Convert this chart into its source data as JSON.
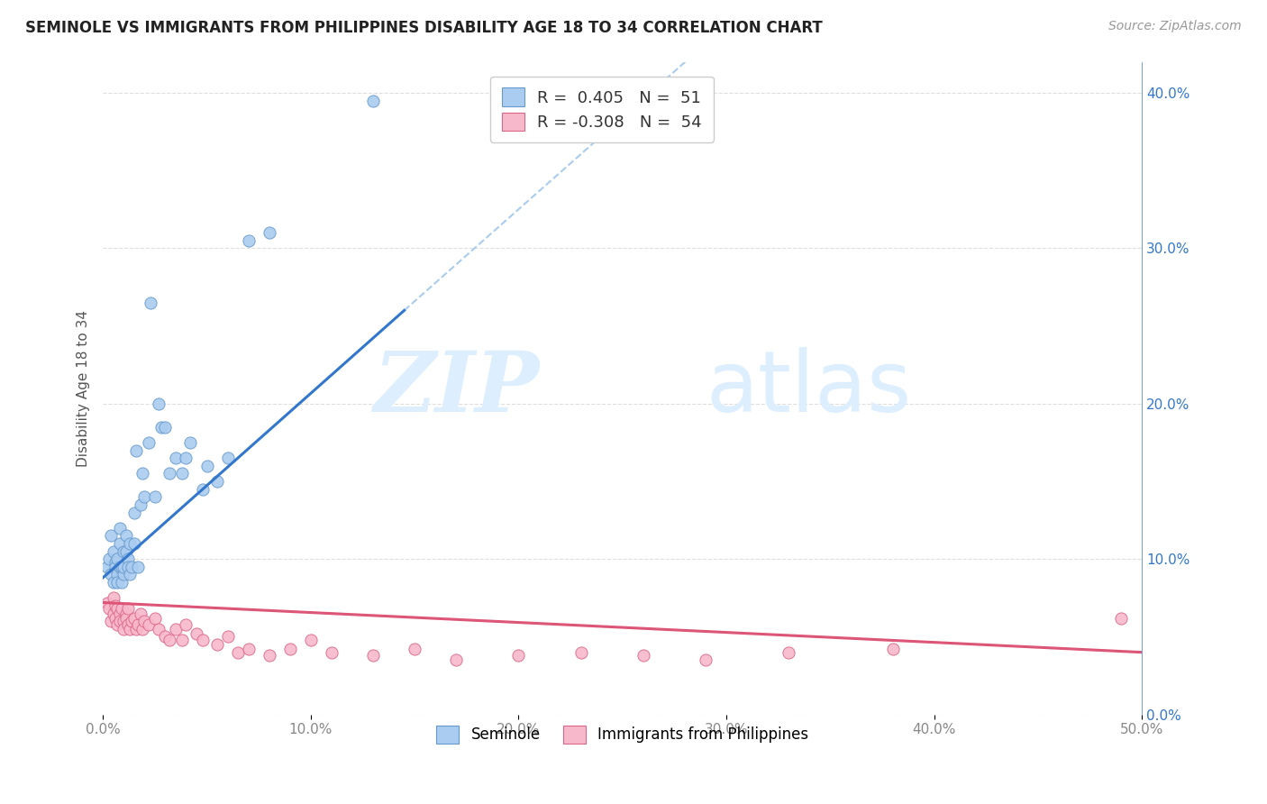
{
  "title": "SEMINOLE VS IMMIGRANTS FROM PHILIPPINES DISABILITY AGE 18 TO 34 CORRELATION CHART",
  "source": "Source: ZipAtlas.com",
  "ylabel": "Disability Age 18 to 34",
  "xlim": [
    0.0,
    0.5
  ],
  "ylim": [
    0.0,
    0.42
  ],
  "seminole_color": "#aaccf0",
  "seminole_edge_color": "#6699cc",
  "philippines_color": "#f8b8cc",
  "philippines_edge_color": "#dd6688",
  "seminole_line_color": "#3377cc",
  "philippines_line_color": "#dd5577",
  "trend_dashed_color": "#aaccee",
  "legend_label1": "Seminole",
  "legend_label2": "Immigrants from Philippines",
  "seminole_R": 0.405,
  "seminole_N": 51,
  "philippines_R": -0.308,
  "philippines_N": 54,
  "seminole_scatter_x": [
    0.002,
    0.003,
    0.004,
    0.004,
    0.005,
    0.005,
    0.006,
    0.006,
    0.007,
    0.007,
    0.007,
    0.008,
    0.008,
    0.008,
    0.009,
    0.009,
    0.01,
    0.01,
    0.01,
    0.011,
    0.011,
    0.012,
    0.012,
    0.013,
    0.013,
    0.014,
    0.015,
    0.015,
    0.016,
    0.017,
    0.018,
    0.019,
    0.02,
    0.022,
    0.023,
    0.025,
    0.027,
    0.028,
    0.03,
    0.032,
    0.035,
    0.038,
    0.04,
    0.042,
    0.048,
    0.05,
    0.055,
    0.06,
    0.07,
    0.08,
    0.13
  ],
  "seminole_scatter_y": [
    0.095,
    0.1,
    0.09,
    0.115,
    0.085,
    0.105,
    0.098,
    0.095,
    0.1,
    0.09,
    0.085,
    0.11,
    0.095,
    0.12,
    0.085,
    0.095,
    0.09,
    0.105,
    0.095,
    0.115,
    0.105,
    0.1,
    0.095,
    0.11,
    0.09,
    0.095,
    0.13,
    0.11,
    0.17,
    0.095,
    0.135,
    0.155,
    0.14,
    0.175,
    0.265,
    0.14,
    0.2,
    0.185,
    0.185,
    0.155,
    0.165,
    0.155,
    0.165,
    0.175,
    0.145,
    0.16,
    0.15,
    0.165,
    0.305,
    0.31,
    0.395
  ],
  "philippines_scatter_x": [
    0.002,
    0.003,
    0.004,
    0.005,
    0.005,
    0.006,
    0.006,
    0.007,
    0.007,
    0.008,
    0.008,
    0.009,
    0.01,
    0.01,
    0.011,
    0.011,
    0.012,
    0.012,
    0.013,
    0.014,
    0.015,
    0.016,
    0.017,
    0.018,
    0.019,
    0.02,
    0.022,
    0.025,
    0.027,
    0.03,
    0.032,
    0.035,
    0.038,
    0.04,
    0.045,
    0.048,
    0.055,
    0.06,
    0.065,
    0.07,
    0.08,
    0.09,
    0.1,
    0.11,
    0.13,
    0.15,
    0.17,
    0.2,
    0.23,
    0.26,
    0.29,
    0.33,
    0.38,
    0.49
  ],
  "philippines_scatter_y": [
    0.072,
    0.068,
    0.06,
    0.075,
    0.065,
    0.07,
    0.062,
    0.068,
    0.058,
    0.065,
    0.06,
    0.068,
    0.06,
    0.055,
    0.065,
    0.062,
    0.058,
    0.068,
    0.055,
    0.06,
    0.062,
    0.055,
    0.058,
    0.065,
    0.055,
    0.06,
    0.058,
    0.062,
    0.055,
    0.05,
    0.048,
    0.055,
    0.048,
    0.058,
    0.052,
    0.048,
    0.045,
    0.05,
    0.04,
    0.042,
    0.038,
    0.042,
    0.048,
    0.04,
    0.038,
    0.042,
    0.035,
    0.038,
    0.04,
    0.038,
    0.035,
    0.04,
    0.042,
    0.062
  ],
  "seminole_line_x": [
    0.0,
    0.145
  ],
  "seminole_line_y": [
    0.088,
    0.26
  ],
  "philippines_line_x": [
    0.0,
    0.5
  ],
  "philippines_line_y": [
    0.072,
    0.04
  ],
  "dashed_line_x": [
    0.145,
    0.5
  ],
  "dashed_line_y": [
    0.26,
    0.68
  ],
  "background_color": "#ffffff",
  "grid_color": "#dedede",
  "title_color": "#222222",
  "axis_label_color": "#555555",
  "tick_color_right": "#3377cc",
  "tick_color_x": "#888888"
}
